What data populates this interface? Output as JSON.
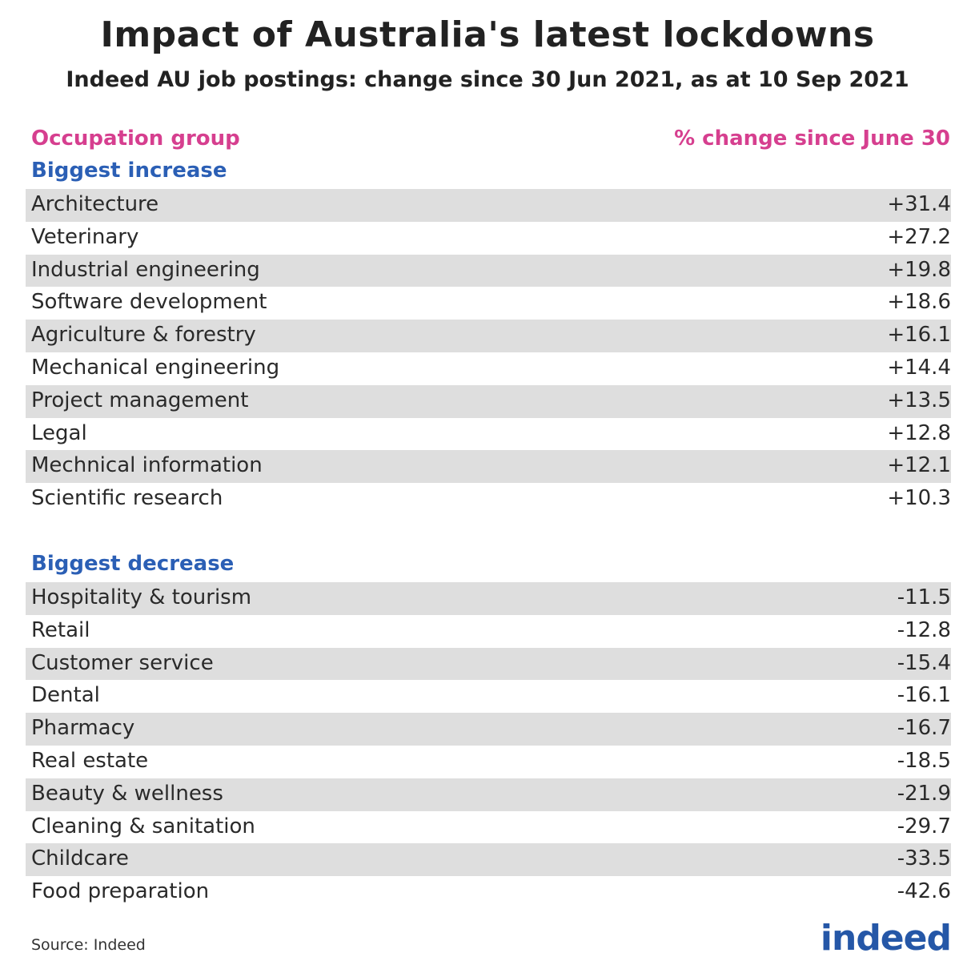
{
  "title": "Impact of Australia's latest lockdowns",
  "subtitle": "Indeed AU job postings: change since 30 Jun 2021, as at 10 Sep 2021",
  "header": {
    "left": "Occupation group",
    "right": "% change since June 30"
  },
  "source": "Source: Indeed",
  "logo": "indeed",
  "colors": {
    "header": "#d63f8f",
    "section": "#2b5fb5",
    "row_shade": "#dedede",
    "logo": "#2557a7"
  },
  "chart_data": {
    "type": "table",
    "sections": [
      {
        "label": "Biggest increase",
        "rows": [
          {
            "category": "Architecture",
            "value": "+31.4"
          },
          {
            "category": "Veterinary",
            "value": "+27.2"
          },
          {
            "category": "Industrial engineering",
            "value": "+19.8"
          },
          {
            "category": "Software development",
            "value": "+18.6"
          },
          {
            "category": "Agriculture & forestry",
            "value": "+16.1"
          },
          {
            "category": "Mechanical engineering",
            "value": "+14.4"
          },
          {
            "category": "Project management",
            "value": "+13.5"
          },
          {
            "category": "Legal",
            "value": "+12.8"
          },
          {
            "category": "Mechnical information",
            "value": "+12.1"
          },
          {
            "category": "Scientific research",
            "value": "+10.3"
          }
        ]
      },
      {
        "label": "Biggest decrease",
        "rows": [
          {
            "category": "Hospitality & tourism",
            "value": "-11.5"
          },
          {
            "category": "Retail",
            "value": "-12.8"
          },
          {
            "category": "Customer service",
            "value": "-15.4"
          },
          {
            "category": "Dental",
            "value": "-16.1"
          },
          {
            "category": "Pharmacy",
            "value": "-16.7"
          },
          {
            "category": "Real estate",
            "value": "-18.5"
          },
          {
            "category": "Beauty & wellness",
            "value": "-21.9"
          },
          {
            "category": "Cleaning & sanitation",
            "value": "-29.7"
          },
          {
            "category": "Childcare",
            "value": "-33.5"
          },
          {
            "category": "Food preparation",
            "value": "-42.6"
          }
        ]
      }
    ]
  }
}
